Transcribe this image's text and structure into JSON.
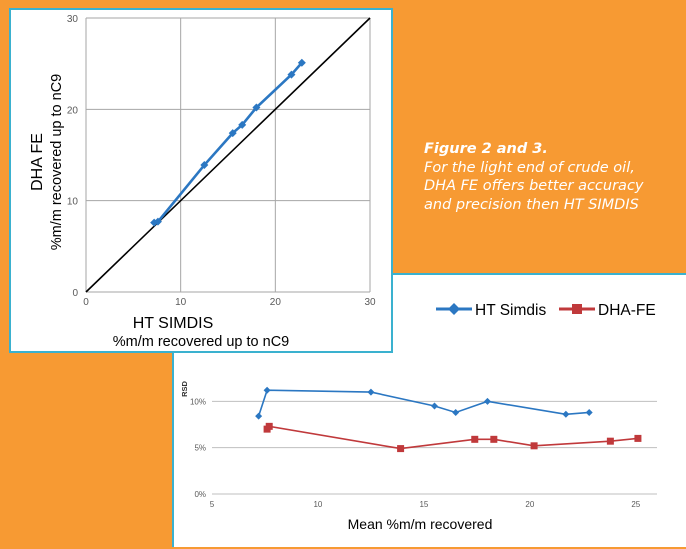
{
  "caption": {
    "heading": "Figure 2 and 3.",
    "body": "For the light end of crude oil, DHA FE offers better accuracy and precision then HT SIMDIS"
  },
  "colors": {
    "background": "#f79a33",
    "panel_border": "#3ab1cf",
    "series_blue": "#2b77c2",
    "series_red": "#c0393b",
    "diagonal": "#000000"
  },
  "chart_data": [
    {
      "type": "scatter",
      "title": "",
      "xlabel_line1": "HT SIMDIS",
      "xlabel_line2": "%m/m recovered up to nC9",
      "ylabel_line1": "DHA FE",
      "ylabel_line2": "%m/m recovered up to nC9",
      "xlim": [
        0,
        30
      ],
      "ylim": [
        0,
        30
      ],
      "x_ticks": [
        "0",
        "10",
        "20",
        "30"
      ],
      "y_ticks": [
        "0",
        "10",
        "20",
        "30"
      ],
      "grid": true,
      "reference_line": "y = x",
      "series": [
        {
          "color": "#2b77c2",
          "points": [
            [
              7.2,
              7.6
            ],
            [
              7.6,
              7.7
            ],
            [
              12.5,
              13.9
            ],
            [
              15.5,
              17.4
            ],
            [
              16.5,
              18.3
            ],
            [
              18.0,
              20.2
            ],
            [
              21.7,
              23.8
            ],
            [
              22.8,
              25.1
            ]
          ]
        }
      ]
    },
    {
      "type": "line",
      "title": "",
      "xlabel": "Mean %m/m recovered",
      "ylabel": "RSD",
      "xlim": [
        5,
        26
      ],
      "ylim": [
        0,
        15
      ],
      "x_ticks": [
        "5",
        "10",
        "15",
        "20",
        "25"
      ],
      "y_ticks": [
        "0%",
        "5%",
        "10%"
      ],
      "grid": true,
      "legend_position": "top-right",
      "series": [
        {
          "name": "HT Simdis",
          "color": "#2b77c2",
          "marker": "diamond",
          "points": [
            [
              7.2,
              8.4
            ],
            [
              7.6,
              11.2
            ],
            [
              12.5,
              11.0
            ],
            [
              15.5,
              9.5
            ],
            [
              16.5,
              8.8
            ],
            [
              18.0,
              10.0
            ],
            [
              21.7,
              8.6
            ],
            [
              22.8,
              8.8
            ]
          ]
        },
        {
          "name": "DHA-FE",
          "color": "#c0393b",
          "marker": "square",
          "points": [
            [
              7.6,
              7.0
            ],
            [
              7.7,
              7.3
            ],
            [
              13.9,
              4.9
            ],
            [
              17.4,
              5.9
            ],
            [
              18.3,
              5.9
            ],
            [
              20.2,
              5.2
            ],
            [
              23.8,
              5.7
            ],
            [
              25.1,
              6.0
            ]
          ]
        }
      ]
    }
  ]
}
